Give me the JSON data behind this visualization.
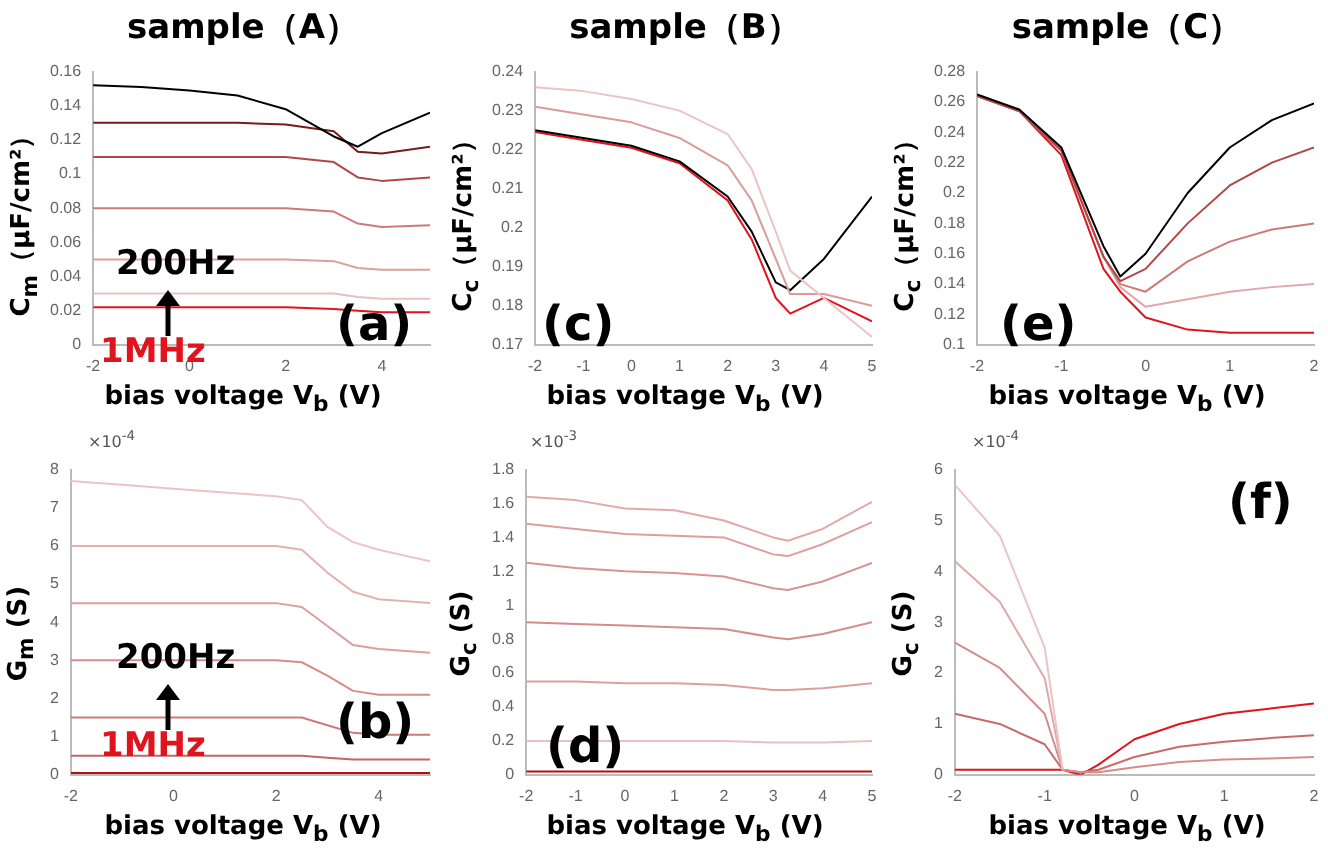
{
  "chart_data": [
    {
      "type": "line",
      "title": "sample（A）",
      "xlabel": "bias voltage V$_{b}$ (V)",
      "ylabel": "C$_{m}$（μF/cm²）",
      "annotations": [
        "200Hz",
        "1MHz",
        "(a)"
      ],
      "xlim": [
        -2,
        5
      ],
      "xticks": [
        -2,
        0,
        2,
        4
      ],
      "ylim": [
        0,
        0.16
      ],
      "yticks": [
        0,
        0.02,
        0.04,
        0.06,
        0.08,
        0.1,
        0.12,
        0.14,
        0.16
      ],
      "legend": false,
      "marker": "none",
      "x": [
        -2,
        -1,
        0,
        1,
        2,
        3,
        3.5,
        4,
        5
      ],
      "series": [
        {
          "color": "#000000",
          "values": [
            0.152,
            0.151,
            0.149,
            0.146,
            0.138,
            0.122,
            0.116,
            0.124,
            0.136
          ]
        },
        {
          "color": "#7a1a1a",
          "values": [
            0.13,
            0.13,
            0.13,
            0.13,
            0.129,
            0.125,
            0.113,
            0.112,
            0.116
          ]
        },
        {
          "color": "#b04848",
          "values": [
            0.11,
            0.11,
            0.11,
            0.11,
            0.11,
            0.107,
            0.098,
            0.096,
            0.098
          ]
        },
        {
          "color": "#cc7a7a",
          "values": [
            0.08,
            0.08,
            0.08,
            0.08,
            0.08,
            0.078,
            0.071,
            0.069,
            0.07
          ]
        },
        {
          "color": "#dca0a0",
          "values": [
            0.05,
            0.05,
            0.05,
            0.05,
            0.05,
            0.049,
            0.045,
            0.044,
            0.044
          ]
        },
        {
          "color": "#e8c0c0",
          "values": [
            0.03,
            0.03,
            0.03,
            0.03,
            0.03,
            0.03,
            0.028,
            0.027,
            0.027
          ]
        },
        {
          "color": "#e0141e",
          "values": [
            0.022,
            0.022,
            0.022,
            0.022,
            0.022,
            0.021,
            0.02,
            0.019,
            0.019
          ]
        }
      ]
    },
    {
      "type": "line",
      "title": "sample（B）",
      "xlabel": "bias voltage V$_{b}$ (V)",
      "ylabel": "C$_{c}$（μF/cm²）",
      "annotations": [
        "(c)"
      ],
      "xlim": [
        -2,
        5
      ],
      "xticks": [
        -2,
        -1,
        0,
        1,
        2,
        3,
        4,
        5
      ],
      "ylim": [
        0.17,
        0.24
      ],
      "yticks": [
        0.17,
        0.18,
        0.19,
        0.2,
        0.21,
        0.22,
        0.23,
        0.24
      ],
      "legend": false,
      "marker": "none",
      "x": [
        -2,
        -1,
        0,
        1,
        2,
        2.5,
        3,
        3.3,
        4,
        5
      ],
      "series": [
        {
          "color": "#ecc4c4",
          "values": [
            0.236,
            0.235,
            0.233,
            0.23,
            0.224,
            0.215,
            0.199,
            0.189,
            0.182,
            0.172
          ]
        },
        {
          "color": "#dc9a9a",
          "values": [
            0.231,
            0.229,
            0.227,
            0.223,
            0.216,
            0.207,
            0.192,
            0.183,
            0.183,
            0.18
          ]
        },
        {
          "color": "#000000",
          "values": [
            0.225,
            0.223,
            0.221,
            0.217,
            0.208,
            0.199,
            0.186,
            0.184,
            0.192,
            0.208
          ]
        },
        {
          "color": "#e0141e",
          "values": [
            0.2245,
            0.2225,
            0.2205,
            0.2165,
            0.207,
            0.197,
            0.182,
            0.178,
            0.182,
            0.176
          ]
        }
      ]
    },
    {
      "type": "line",
      "title": "sample（C）",
      "xlabel": "bias voltage V$_{b}$ (V)",
      "ylabel": "C$_{c}$（μF/cm²）",
      "annotations": [
        "(e)"
      ],
      "xlim": [
        -2,
        2
      ],
      "xticks": [
        -2,
        -1,
        0,
        1,
        2
      ],
      "ylim": [
        0.1,
        0.28
      ],
      "yticks": [
        0.1,
        0.12,
        0.14,
        0.16,
        0.18,
        0.2,
        0.22,
        0.24,
        0.26,
        0.28
      ],
      "legend": false,
      "marker": "none",
      "x": [
        -2,
        -1.5,
        -1,
        -0.5,
        -0.3,
        0,
        0.5,
        1,
        1.5,
        2
      ],
      "series": [
        {
          "color": "#000000",
          "values": [
            0.265,
            0.255,
            0.23,
            0.165,
            0.145,
            0.16,
            0.2,
            0.23,
            0.248,
            0.259
          ]
        },
        {
          "color": "#b04848",
          "values": [
            0.264,
            0.254,
            0.228,
            0.158,
            0.142,
            0.15,
            0.18,
            0.205,
            0.22,
            0.23
          ]
        },
        {
          "color": "#cc7a7a",
          "values": [
            0.264,
            0.254,
            0.228,
            0.158,
            0.14,
            0.135,
            0.155,
            0.168,
            0.176,
            0.18
          ]
        },
        {
          "color": "#e0a8a8",
          "values": [
            0.264,
            0.254,
            0.228,
            0.158,
            0.138,
            0.125,
            0.13,
            0.135,
            0.138,
            0.14
          ]
        },
        {
          "color": "#e0141e",
          "values": [
            0.264,
            0.254,
            0.225,
            0.15,
            0.135,
            0.118,
            0.11,
            0.108,
            0.108,
            0.108
          ]
        }
      ]
    },
    {
      "type": "line",
      "xlabel": "bias voltage V$_{b}$ (V)",
      "ylabel": "G$_{m}$ (S)",
      "annotations": [
        "×10$^{-4}$",
        "200Hz",
        "1MHz",
        "(b)"
      ],
      "xlim": [
        -2,
        5
      ],
      "xticks": [
        -2,
        0,
        2,
        4
      ],
      "ylim": [
        0,
        8
      ],
      "yticks": [
        0,
        1,
        2,
        3,
        4,
        5,
        6,
        7,
        8
      ],
      "legend": false,
      "marker": "none",
      "x": [
        -2,
        -1,
        0,
        1,
        2,
        2.5,
        3,
        3.5,
        4,
        5
      ],
      "series": [
        {
          "color": "#ecc4c4",
          "values": [
            7.7,
            7.6,
            7.5,
            7.4,
            7.3,
            7.2,
            6.5,
            6.1,
            5.9,
            5.6
          ]
        },
        {
          "color": "#e4b0b0",
          "values": [
            6.0,
            6.0,
            6.0,
            6.0,
            6.0,
            5.9,
            5.3,
            4.8,
            4.6,
            4.5
          ]
        },
        {
          "color": "#dc9e9e",
          "values": [
            4.5,
            4.5,
            4.5,
            4.5,
            4.5,
            4.4,
            3.9,
            3.4,
            3.3,
            3.2
          ]
        },
        {
          "color": "#d48c8c",
          "values": [
            3.0,
            3.0,
            3.0,
            3.0,
            3.0,
            2.95,
            2.6,
            2.2,
            2.1,
            2.1
          ]
        },
        {
          "color": "#cc7a7a",
          "values": [
            1.5,
            1.5,
            1.5,
            1.5,
            1.5,
            1.5,
            1.3,
            1.1,
            1.05,
            1.05
          ]
        },
        {
          "color": "#c46666",
          "values": [
            0.5,
            0.5,
            0.5,
            0.5,
            0.5,
            0.5,
            0.45,
            0.4,
            0.4,
            0.4
          ]
        },
        {
          "color": "#b01010",
          "values": [
            0.05,
            0.05,
            0.05,
            0.05,
            0.05,
            0.05,
            0.05,
            0.05,
            0.05,
            0.05
          ]
        }
      ]
    },
    {
      "type": "line",
      "xlabel": "bias voltage V$_{b}$ (V)",
      "ylabel": "G$_{c}$ (S)",
      "annotations": [
        "×10$^{-3}$",
        "(d)"
      ],
      "xlim": [
        -2,
        5
      ],
      "xticks": [
        -2,
        -1,
        0,
        1,
        2,
        3,
        4,
        5
      ],
      "ylim": [
        0,
        1.8
      ],
      "yticks": [
        0,
        0.2,
        0.4,
        0.6,
        0.8,
        1,
        1.2,
        1.4,
        1.6,
        1.8
      ],
      "legend": false,
      "marker": "none",
      "x": [
        -2,
        -1,
        0,
        1,
        2,
        3,
        3.3,
        4,
        5
      ],
      "series": [
        {
          "color": "#e0aaaa",
          "values": [
            1.64,
            1.62,
            1.57,
            1.56,
            1.5,
            1.4,
            1.38,
            1.45,
            1.61
          ]
        },
        {
          "color": "#dc9e9e",
          "values": [
            1.48,
            1.45,
            1.42,
            1.41,
            1.4,
            1.3,
            1.29,
            1.36,
            1.49
          ]
        },
        {
          "color": "#d89494",
          "values": [
            1.25,
            1.22,
            1.2,
            1.19,
            1.17,
            1.1,
            1.09,
            1.14,
            1.25
          ]
        },
        {
          "color": "#d48c8c",
          "values": [
            0.9,
            0.89,
            0.88,
            0.87,
            0.86,
            0.81,
            0.8,
            0.83,
            0.9
          ]
        },
        {
          "color": "#dca0a0",
          "values": [
            0.55,
            0.55,
            0.54,
            0.54,
            0.53,
            0.5,
            0.5,
            0.51,
            0.54
          ]
        },
        {
          "color": "#e8c0c0",
          "values": [
            0.2,
            0.2,
            0.2,
            0.2,
            0.2,
            0.19,
            0.19,
            0.19,
            0.2
          ]
        },
        {
          "color": "#b01010",
          "values": [
            0.02,
            0.02,
            0.02,
            0.02,
            0.02,
            0.02,
            0.02,
            0.02,
            0.02
          ]
        }
      ]
    },
    {
      "type": "line",
      "xlabel": "bias voltage V$_{b}$ (V)",
      "ylabel": "G$_{c}$ (S)",
      "annotations": [
        "×10$^{-4}$",
        "(f)"
      ],
      "xlim": [
        -2,
        2
      ],
      "xticks": [
        -2,
        -1,
        0,
        1,
        2
      ],
      "ylim": [
        0,
        6
      ],
      "yticks": [
        0,
        1,
        2,
        3,
        4,
        5,
        6
      ],
      "legend": false,
      "marker": "none",
      "x": [
        -2,
        -1.5,
        -1,
        -0.8,
        -0.6,
        -0.4,
        0,
        0.5,
        1,
        1.5,
        2
      ],
      "series": [
        {
          "color": "#ecc4c4",
          "values": [
            5.7,
            4.7,
            2.5,
            0.1,
            null,
            null,
            null,
            null,
            null,
            null,
            null
          ]
        },
        {
          "color": "#e0a8a8",
          "values": [
            4.2,
            3.4,
            1.9,
            0.1,
            null,
            null,
            null,
            null,
            null,
            null,
            null
          ]
        },
        {
          "color": "#d48c8c",
          "values": [
            2.6,
            2.1,
            1.2,
            0.1,
            0.05,
            0.05,
            0.15,
            0.25,
            0.3,
            0.32,
            0.35
          ]
        },
        {
          "color": "#c86a6a",
          "values": [
            1.2,
            1.0,
            0.6,
            0.1,
            0.05,
            0.1,
            0.35,
            0.55,
            0.65,
            0.72,
            0.78
          ]
        },
        {
          "color": "#e0141e",
          "values": [
            0.1,
            0.1,
            0.1,
            0.1,
            0.0,
            0.2,
            0.7,
            1.0,
            1.2,
            1.3,
            1.4
          ]
        }
      ]
    }
  ]
}
